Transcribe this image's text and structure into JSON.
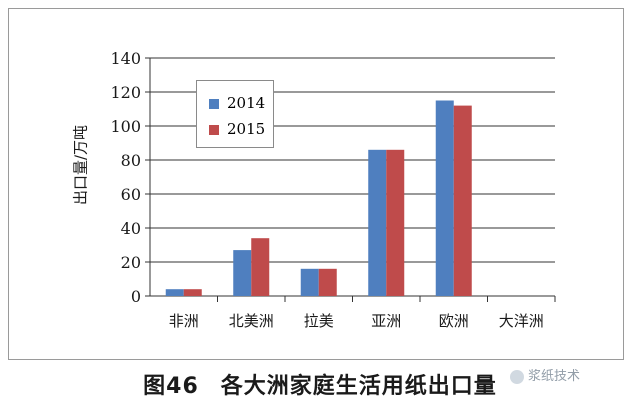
{
  "chart_data": {
    "type": "bar",
    "categories": [
      "非洲",
      "北美洲",
      "拉美",
      "亚洲",
      "欧洲",
      "大洋洲"
    ],
    "series": [
      {
        "name": "2014",
        "color": "#4f7fbf",
        "values": [
          4,
          27,
          16,
          86,
          115,
          0
        ]
      },
      {
        "name": "2015",
        "color": "#bf4b4b",
        "values": [
          4,
          34,
          16,
          86,
          112,
          0
        ]
      }
    ],
    "title": "",
    "xlabel": "",
    "ylabel": "出口量/万吨",
    "ylim": [
      0,
      140
    ],
    "yticks": [
      0,
      20,
      40,
      60,
      80,
      100,
      120,
      140
    ],
    "grid": true,
    "legend_position": "top-left"
  },
  "caption": {
    "number": "图46",
    "text": "各大洲家庭生活用纸出口量"
  },
  "watermark": {
    "text": "浆纸技术"
  }
}
